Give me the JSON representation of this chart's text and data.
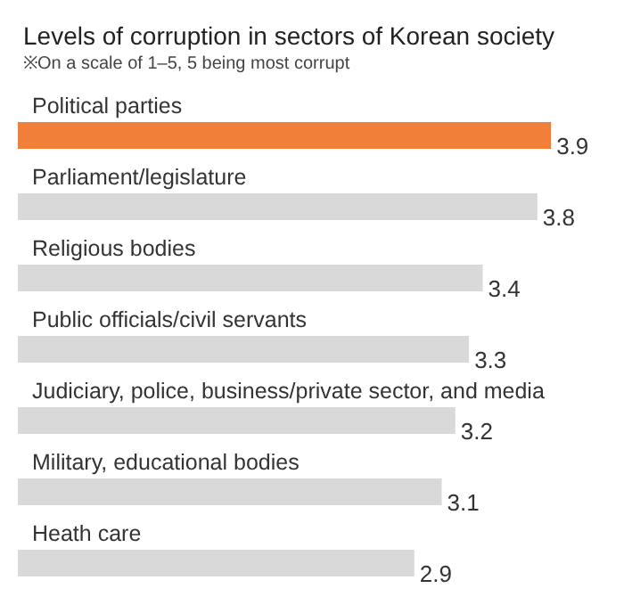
{
  "chart_data": {
    "type": "bar",
    "orientation": "horizontal",
    "title": "Levels of corruption in sectors of Korean society",
    "subtitle": "※On a scale of 1–5, 5 being most corrupt",
    "categories": [
      "Political parties",
      "Parliament/legislature",
      "Religious bodies",
      "Public officials/civil servants",
      "Judiciary, police, business/private sector, and media",
      "Military, educational bodies",
      "Heath care"
    ],
    "values": [
      3.9,
      3.8,
      3.4,
      3.3,
      3.2,
      3.1,
      2.9
    ],
    "colors": [
      "#f07f3a",
      "#d9d9d9",
      "#d9d9d9",
      "#d9d9d9",
      "#d9d9d9",
      "#d9d9d9",
      "#d9d9d9"
    ],
    "data_labels": true
  }
}
